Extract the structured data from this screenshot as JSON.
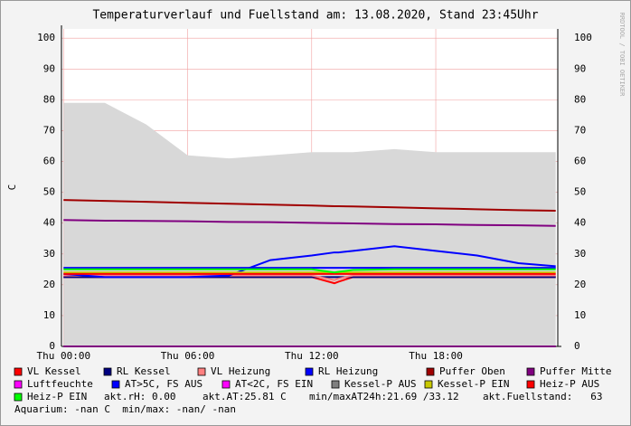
{
  "chart_data": {
    "type": "line",
    "title": "Temperaturverlauf und Fuellstand am: 13.08.2020, Stand 23:45Uhr",
    "y_label": "C",
    "side_text": "RRDTOOL / TOBI OETIKER",
    "x": [
      0,
      2,
      4,
      6,
      8,
      10,
      12,
      13.1,
      13.3,
      14,
      16,
      18,
      20,
      22,
      23.8
    ],
    "xlim": [
      -0.1,
      23.9
    ],
    "xticks": [
      {
        "value": 0,
        "label": "Thu 00:00"
      },
      {
        "value": 6,
        "label": "Thu 06:00"
      },
      {
        "value": 12,
        "label": "Thu 12:00"
      },
      {
        "value": 18,
        "label": "Thu 18:00"
      }
    ],
    "ylim": [
      0,
      103
    ],
    "yticks": [
      0,
      10,
      20,
      30,
      40,
      50,
      60,
      70,
      80,
      90,
      100
    ],
    "grid": true,
    "series": [
      {
        "name": "Kessel-P AUS",
        "color": "#808080",
        "area": true,
        "values": [
          79,
          79,
          72,
          62,
          61,
          62,
          63,
          63,
          63,
          63,
          64,
          63,
          63,
          63,
          63
        ]
      },
      {
        "name": "VL Kessel",
        "color": "#ff0000",
        "values": [
          22.5,
          22.5,
          22.5,
          22.5,
          22.5,
          22.5,
          22.5,
          20.5,
          21,
          22.5,
          22.5,
          22.5,
          22.5,
          22.5,
          22.5
        ]
      },
      {
        "name": "RL Kessel",
        "color": "#000080",
        "values": [
          22.5,
          22.5,
          22.5,
          22.5,
          22.5,
          22.5,
          22.5,
          22.5,
          22.5,
          22.5,
          22.5,
          22.5,
          22.5,
          22.5,
          22.5
        ]
      },
      {
        "name": "VL Heizung",
        "color": "#ff8080",
        "values": [
          23,
          23,
          23,
          23,
          23,
          23,
          23,
          21.5,
          22,
          23,
          23,
          23,
          23,
          23,
          23
        ]
      },
      {
        "name": "RL Heizung",
        "color": "#0000ff",
        "values": [
          23.5,
          22.5,
          22.5,
          22.5,
          23,
          28,
          29.5,
          30.5,
          30.5,
          31,
          32.5,
          31,
          29.5,
          27,
          26
        ]
      },
      {
        "name": "Puffer Oben",
        "color": "#a00000",
        "values": [
          47.5,
          47.2,
          46.9,
          46.6,
          46.3,
          46,
          45.7,
          45.5,
          45.5,
          45.4,
          45.1,
          44.8,
          44.5,
          44.2,
          44
        ]
      },
      {
        "name": "Puffer Mitte",
        "color": "#800080",
        "values": [
          41,
          40.8,
          40.7,
          40.6,
          40.4,
          40.3,
          40.1,
          40,
          40,
          39.9,
          39.7,
          39.6,
          39.4,
          39.3,
          39.1
        ]
      },
      {
        "name": "Luftfeuchte",
        "color": "#ff00ff",
        "values": [
          0,
          0,
          0,
          0,
          0,
          0,
          0,
          0,
          0,
          0,
          0,
          0,
          0,
          0,
          0
        ]
      },
      {
        "name": "AT>5C, FS AUS",
        "color": "#0000ff",
        "values": [
          25.5,
          25.5,
          25.5,
          25.5,
          25.5,
          25.5,
          25.5,
          25.5,
          25.5,
          25.5,
          25.5,
          25.5,
          25.5,
          25.5,
          25.5
        ]
      },
      {
        "name": "AT<2C, FS EIN",
        "color": "#ff00ff",
        "values": [
          0,
          0,
          0,
          0,
          0,
          0,
          0,
          0,
          0,
          0,
          0,
          0,
          0,
          0,
          0
        ]
      },
      {
        "name": "Kessel-P EIN",
        "color": "#c8c800",
        "values": [
          24,
          24,
          24,
          24,
          24,
          24,
          24,
          24,
          24,
          24,
          24,
          24,
          24,
          24,
          24
        ]
      },
      {
        "name": "Heiz-P AUS",
        "color": "#ff0000",
        "values": [
          23.5,
          23.5,
          23.5,
          23.5,
          23.5,
          23.5,
          23.5,
          23.5,
          23.5,
          23.5,
          23.5,
          23.5,
          23.5,
          23.5,
          23.5
        ]
      },
      {
        "name": "Heiz-P EIN",
        "color": "#00ff00",
        "values": [
          25,
          25,
          25,
          25,
          25,
          25,
          25,
          24,
          24.2,
          24.8,
          25,
          25,
          25,
          25,
          25
        ]
      }
    ],
    "notes": [
      "akt.rH: 0.00",
      "akt.AT:25.81 C",
      "min/maxAT24h:21.69 /33.12",
      "akt.Fuellstand:   63",
      "Aquarium: -nan C  min/max: -nan/ -nan"
    ]
  }
}
